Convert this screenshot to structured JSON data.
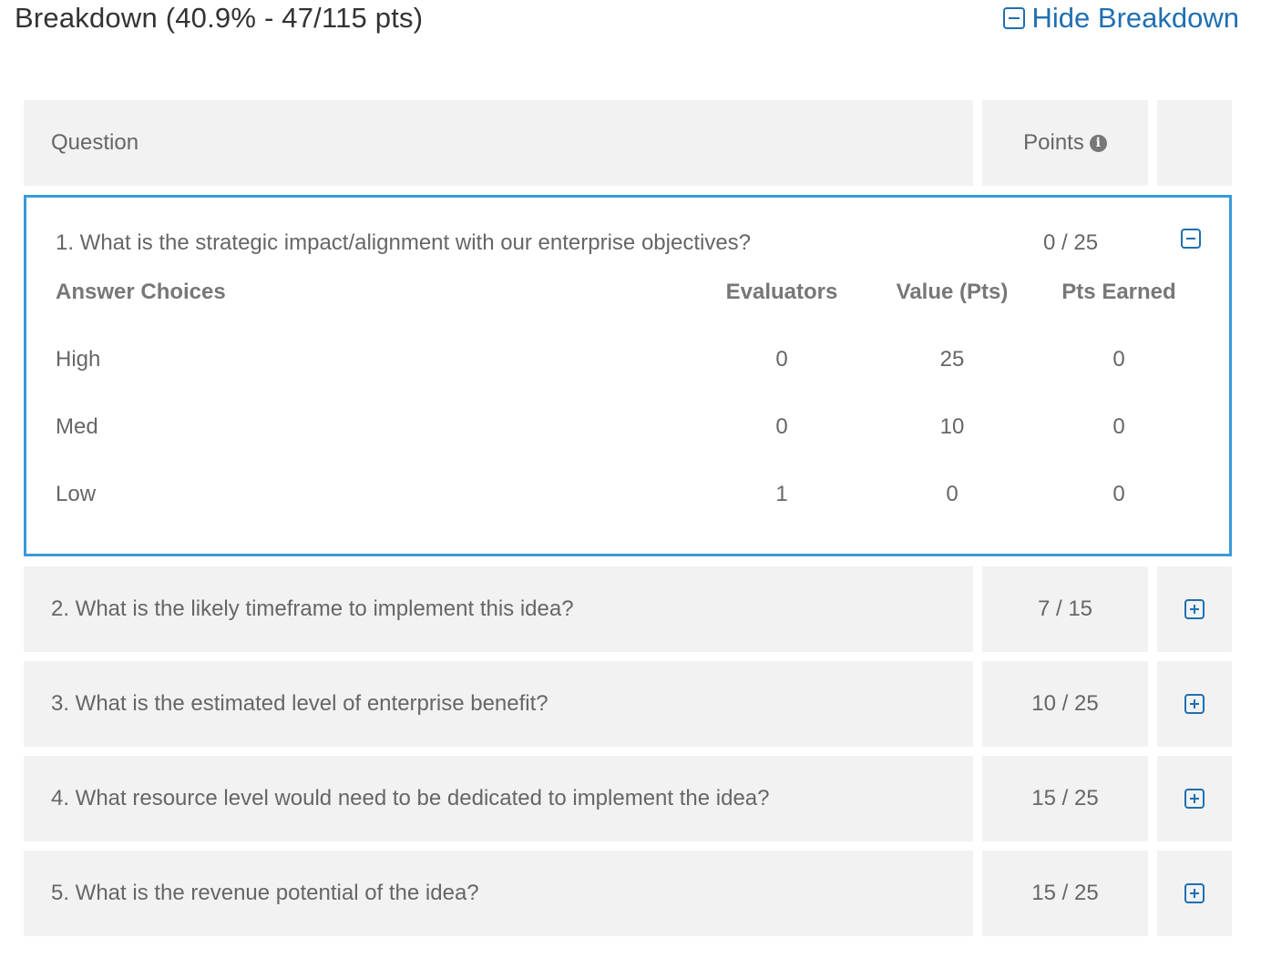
{
  "header": {
    "title": "Breakdown (40.9% - 47/115 pts)",
    "hide_label": "Hide Breakdown",
    "hide_icon": "minus-square-icon"
  },
  "table": {
    "col_question": "Question",
    "col_points": "Points",
    "info_icon": "info-circle-icon"
  },
  "expanded_question": {
    "text": "1. What is the strategic impact/alignment with our enterprise objectives?",
    "points": "0 / 25",
    "toggle_icon": "minus-square-icon",
    "headers": {
      "choices": "Answer Choices",
      "evaluators": "Evaluators",
      "value": "Value (Pts)",
      "earned": "Pts Earned"
    },
    "rows": [
      {
        "choice": "High",
        "evaluators": "0",
        "value": "25",
        "earned": "0"
      },
      {
        "choice": "Med",
        "evaluators": "0",
        "value": "10",
        "earned": "0"
      },
      {
        "choice": "Low",
        "evaluators": "1",
        "value": "0",
        "earned": "0"
      }
    ]
  },
  "questions": [
    {
      "text": "2. What is the likely timeframe to implement this idea?",
      "points": "7 / 15",
      "toggle_icon": "plus-square-icon"
    },
    {
      "text": "3. What is the estimated level of enterprise benefit?",
      "points": "10 / 25",
      "toggle_icon": "plus-square-icon"
    },
    {
      "text": "4. What resource level would need to be dedicated to implement the idea?",
      "points": "15 / 25",
      "toggle_icon": "plus-square-icon"
    },
    {
      "text": "5. What is the revenue potential of the idea?",
      "points": "15 / 25",
      "toggle_icon": "plus-square-icon"
    }
  ],
  "colors": {
    "accent": "#1f6fb2",
    "highlight_border": "#3a9ad9",
    "row_bg": "#f2f2f2"
  }
}
